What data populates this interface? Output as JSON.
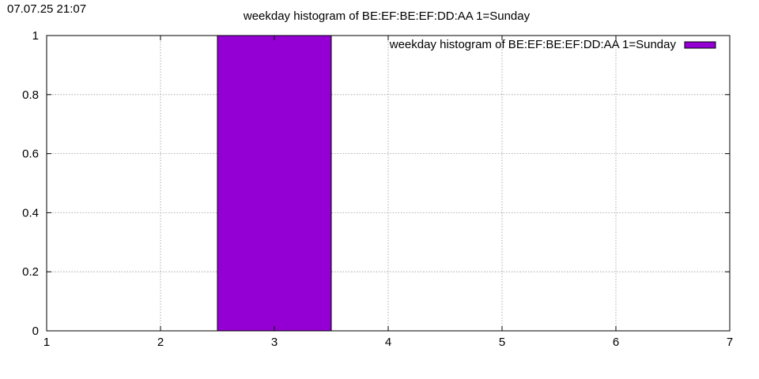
{
  "timestamp": "07.07.25 21:07",
  "chart_data": {
    "type": "bar",
    "title": "weekday histogram of BE:EF:BE:EF:DD:AA 1=Sunday",
    "xlabel": "",
    "ylabel": "",
    "xlim": [
      1,
      7
    ],
    "ylim": [
      0,
      1
    ],
    "x_ticks": [
      1,
      2,
      3,
      4,
      5,
      6,
      7
    ],
    "y_ticks": [
      0,
      0.2,
      0.4,
      0.6,
      0.8,
      1
    ],
    "grid": true,
    "legend_position": "top-right",
    "bar_width": 1,
    "series": [
      {
        "name": "weekday histogram of BE:EF:BE:EF:DD:AA 1=Sunday",
        "color": "#9400d3",
        "points": [
          {
            "x": 3,
            "y": 1
          }
        ]
      }
    ]
  }
}
